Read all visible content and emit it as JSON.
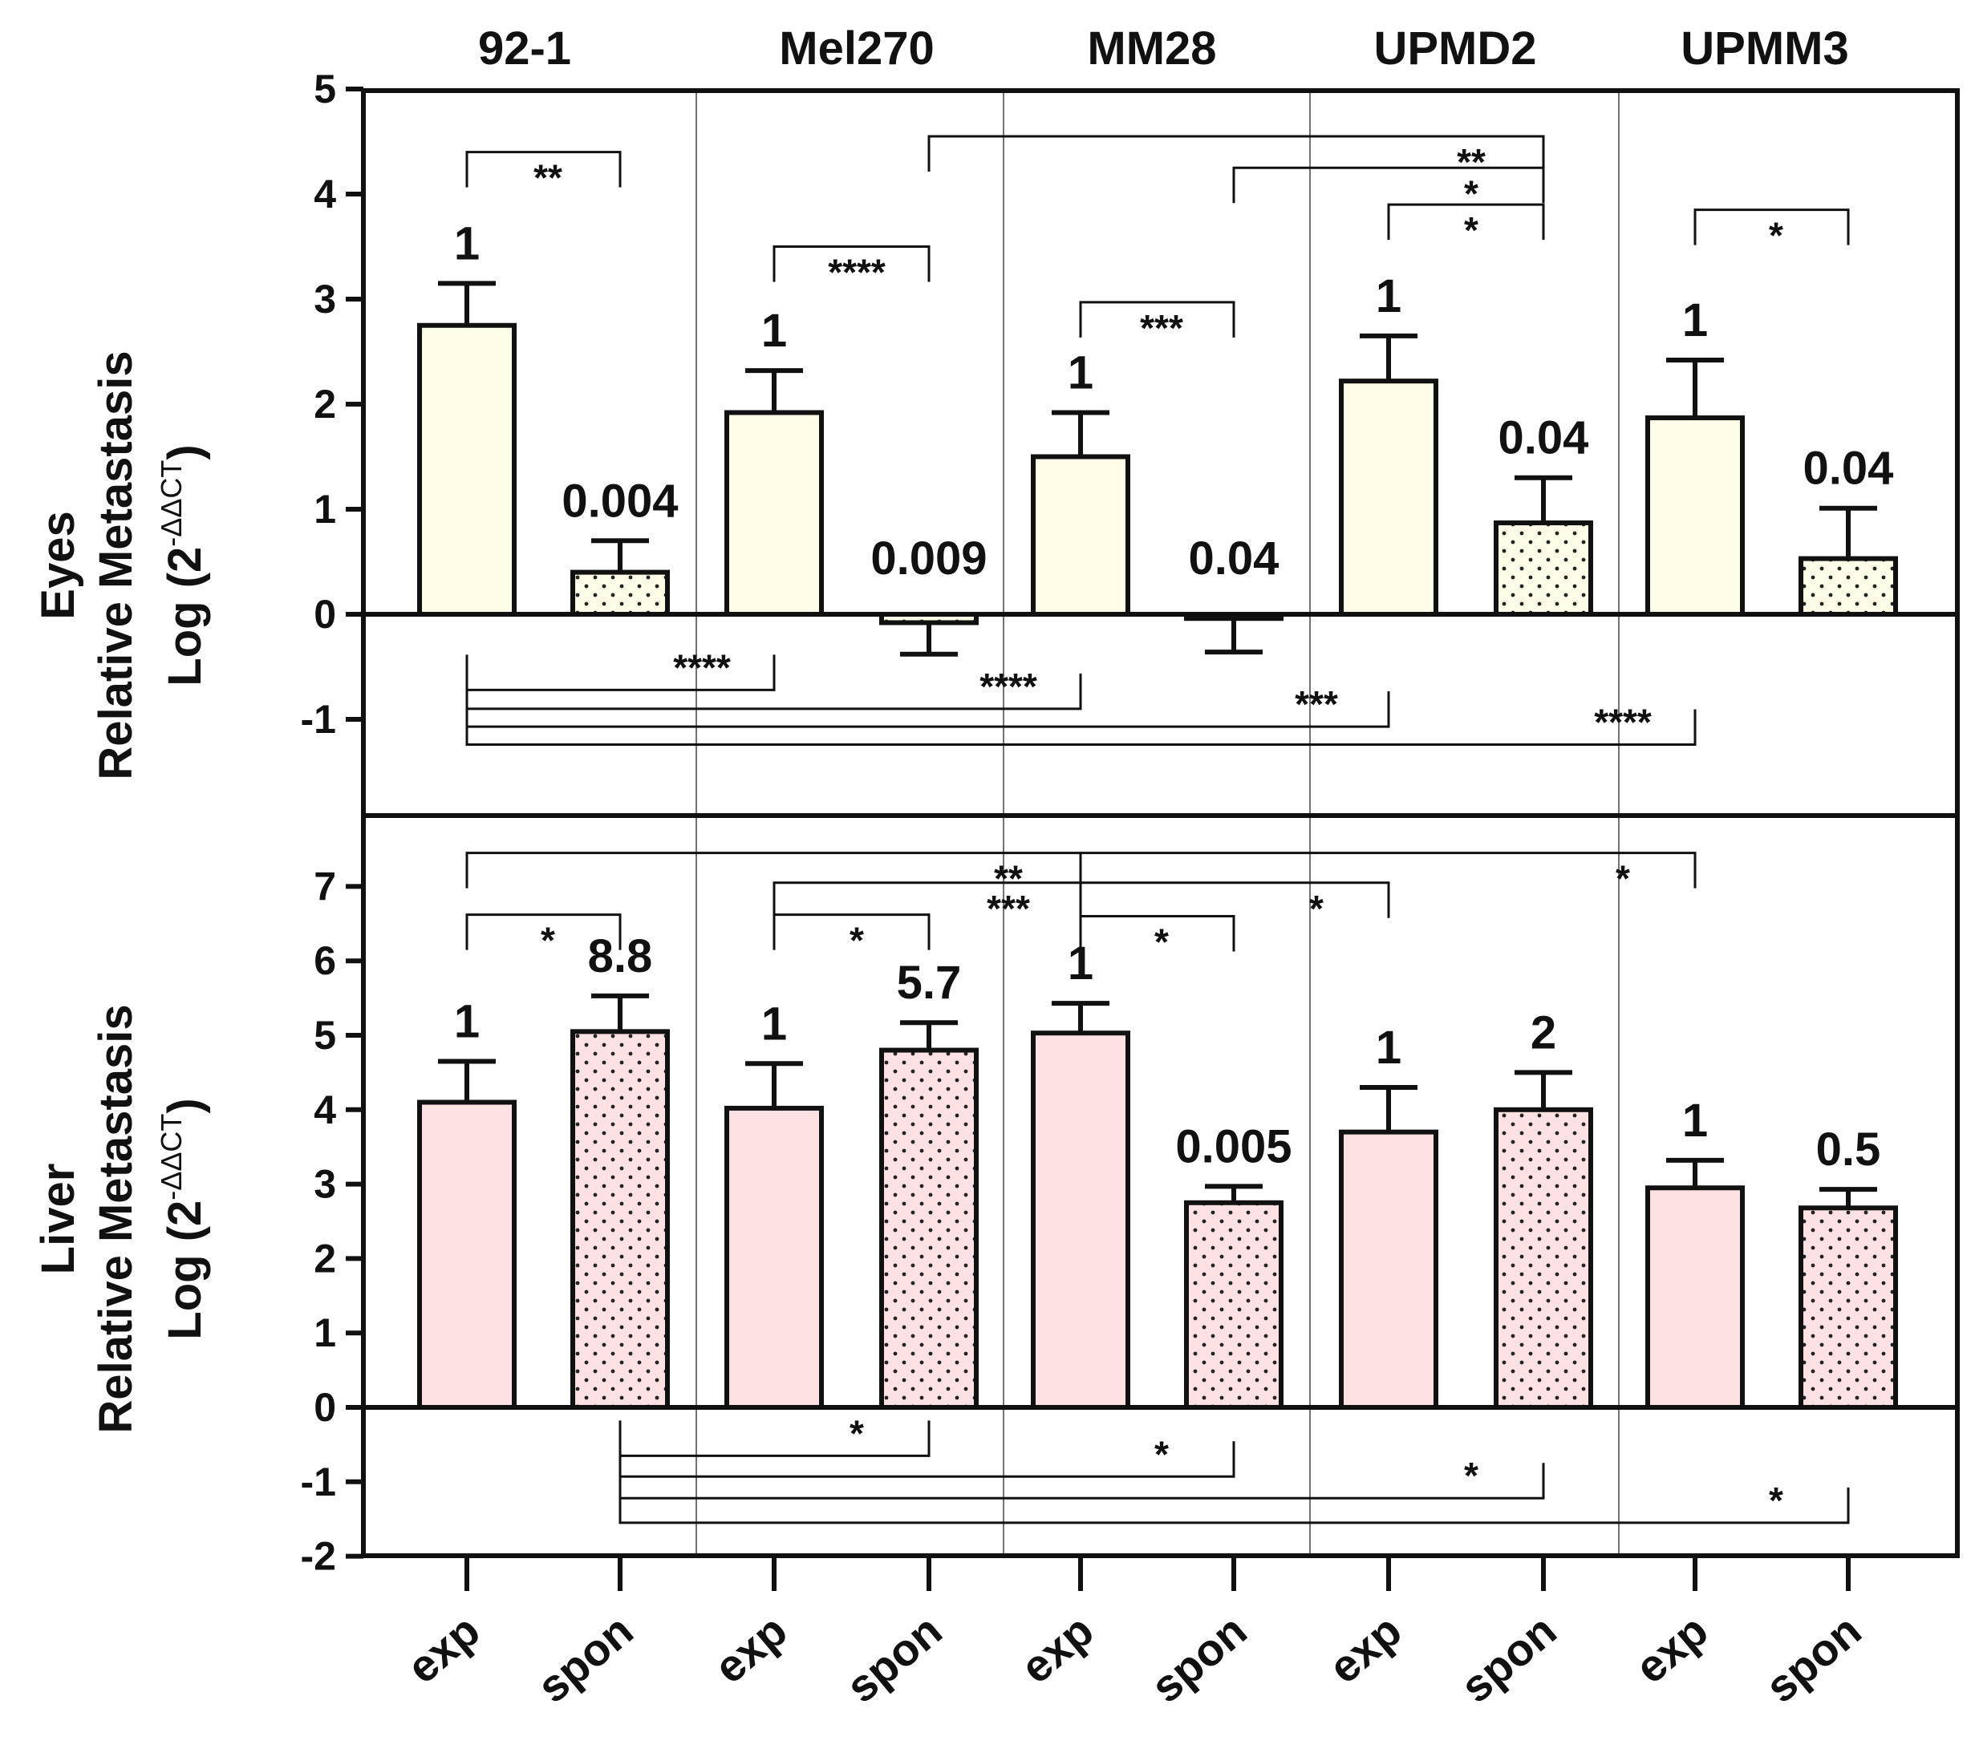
{
  "colors": {
    "eyes_fill": "#FFFDE7",
    "liver_fill": "#FDE1E3",
    "ink": "#111111"
  },
  "chart_data": [
    {
      "panel": "eyes",
      "type": "bar",
      "ylabel_line1": "Eyes",
      "ylabel_line2": "Relative Metastasis",
      "ylabel_line3_prefix": "Log (2",
      "ylabel_sup": "-ΔΔCT",
      "ylabel_suffix": ")",
      "ylim": [
        -1.9,
        5
      ],
      "yticks": [
        -1,
        0,
        1,
        2,
        3,
        4,
        5
      ],
      "cell_lines": [
        "92-1",
        "Mel270",
        "MM28",
        "UPMD2",
        "UPMM3"
      ],
      "x_categories": [
        "exp",
        "spon",
        "exp",
        "spon",
        "exp",
        "spon",
        "exp",
        "spon",
        "exp",
        "spon"
      ],
      "series": [
        {
          "name": "exp",
          "pattern": "solid",
          "values": [
            2.75,
            1.92,
            1.5,
            2.22,
            1.87
          ],
          "errors": [
            0.4,
            0.4,
            0.42,
            0.43,
            0.55
          ],
          "labels": [
            "1",
            "1",
            "1",
            "1",
            "1"
          ]
        },
        {
          "name": "spon",
          "pattern": "dotted",
          "values": [
            0.4,
            -0.08,
            -0.04,
            0.87,
            0.53
          ],
          "errors": [
            0.3,
            0.3,
            0.32,
            0.43,
            0.48
          ],
          "labels": [
            "0.004",
            "0.009",
            "0.04",
            "0.04",
            "0.04"
          ]
        }
      ],
      "brackets": [
        {
          "from": 0,
          "to": 1,
          "y": 4.4,
          "dir": "down",
          "label": "**"
        },
        {
          "from": 2,
          "to": 3,
          "y": 3.5,
          "dir": "down",
          "label": "****"
        },
        {
          "from": 4,
          "to": 5,
          "y": 2.97,
          "dir": "down",
          "label": "***"
        },
        {
          "from": 6,
          "to": 7,
          "y": 3.9,
          "dir": "down",
          "label": "*"
        },
        {
          "from": 8,
          "to": 9,
          "y": 3.85,
          "dir": "down",
          "label": "*"
        },
        {
          "from": 3,
          "to": 7,
          "y": 4.55,
          "dir": "down",
          "label": "**"
        },
        {
          "from": 5,
          "to": 7,
          "y": 4.25,
          "dir": "down",
          "label": "*"
        },
        {
          "from": 0,
          "to": 2,
          "y": -0.72,
          "dir": "up",
          "label": "****"
        },
        {
          "from": 0,
          "to": 4,
          "y": -0.9,
          "dir": "up",
          "label": "****"
        },
        {
          "from": 0,
          "to": 6,
          "y": -1.07,
          "dir": "up",
          "label": "***"
        },
        {
          "from": 0,
          "to": 8,
          "y": -1.24,
          "dir": "up",
          "label": "****"
        }
      ]
    },
    {
      "panel": "liver",
      "type": "bar",
      "ylabel_line1": "Liver",
      "ylabel_line2": "Relative Metastasis",
      "ylabel_line3_prefix": "Log (2",
      "ylabel_sup": "-ΔΔCT",
      "ylabel_suffix": ")",
      "ylim": [
        -2,
        7.9
      ],
      "yticks": [
        -2,
        -1,
        0,
        1,
        2,
        3,
        4,
        5,
        6,
        7
      ],
      "x_categories": [
        "exp",
        "spon",
        "exp",
        "spon",
        "exp",
        "spon",
        "exp",
        "spon",
        "exp",
        "spon"
      ],
      "series": [
        {
          "name": "exp",
          "pattern": "solid",
          "values": [
            4.1,
            4.02,
            5.03,
            3.7,
            2.95
          ],
          "errors": [
            0.55,
            0.6,
            0.4,
            0.6,
            0.37
          ],
          "labels": [
            "1",
            "1",
            "1",
            "1",
            "1"
          ]
        },
        {
          "name": "spon",
          "pattern": "dotted",
          "values": [
            5.05,
            4.8,
            2.75,
            4.0,
            2.68
          ],
          "errors": [
            0.48,
            0.37,
            0.22,
            0.5,
            0.25
          ],
          "labels": [
            "8.8",
            "5.7",
            "0.005",
            "2",
            "0.5"
          ]
        }
      ],
      "brackets": [
        {
          "from": 0,
          "to": 1,
          "y": 6.62,
          "dir": "down",
          "label": "*"
        },
        {
          "from": 0,
          "to": 4,
          "y": 7.45,
          "dir": "down",
          "label": "**"
        },
        {
          "from": 2,
          "to": 3,
          "y": 6.62,
          "dir": "down",
          "label": "*"
        },
        {
          "from": 2,
          "to": 4,
          "y": 7.05,
          "dir": "down",
          "label": "***"
        },
        {
          "from": 4,
          "to": 5,
          "y": 6.6,
          "dir": "down",
          "label": "*"
        },
        {
          "from": 4,
          "to": 6,
          "y": 7.05,
          "dir": "down",
          "label": "*"
        },
        {
          "from": 4,
          "to": 8,
          "y": 7.45,
          "dir": "down",
          "label": "*"
        },
        {
          "from": 1,
          "to": 3,
          "y": -0.65,
          "dir": "up",
          "label": "*"
        },
        {
          "from": 1,
          "to": 5,
          "y": -0.93,
          "dir": "up",
          "label": "*"
        },
        {
          "from": 1,
          "to": 7,
          "y": -1.22,
          "dir": "up",
          "label": "*"
        },
        {
          "from": 1,
          "to": 9,
          "y": -1.55,
          "dir": "up",
          "label": "*"
        }
      ]
    }
  ]
}
